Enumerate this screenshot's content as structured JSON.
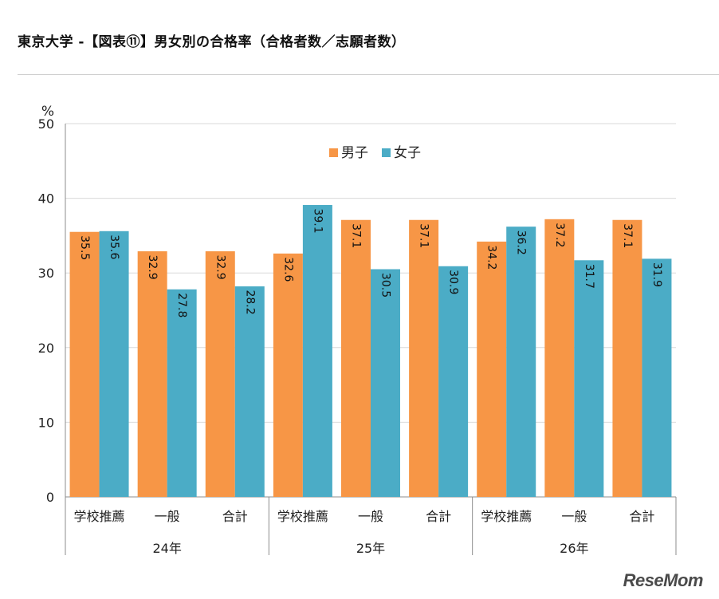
{
  "page": {
    "title": "東京大学 -【図表⑪】男女別の合格率（合格者数／志願者数）",
    "brand": "ReseMom"
  },
  "chart_data": {
    "type": "bar",
    "unit": "%",
    "ylim": [
      0,
      50
    ],
    "yticks": [
      0,
      10,
      20,
      30,
      40,
      50
    ],
    "grid": true,
    "legend_position": "top-center",
    "groups": [
      {
        "label": "24年",
        "categories": [
          "学校推薦",
          "一般",
          "合計"
        ]
      },
      {
        "label": "25年",
        "categories": [
          "学校推薦",
          "一般",
          "合計"
        ]
      },
      {
        "label": "26年",
        "categories": [
          "学校推薦",
          "一般",
          "合計"
        ]
      }
    ],
    "series": [
      {
        "name": "男子",
        "color": "#f79646",
        "values": [
          35.5,
          32.9,
          32.9,
          32.6,
          37.1,
          37.1,
          34.2,
          37.2,
          37.1
        ]
      },
      {
        "name": "女子",
        "color": "#4bacc6",
        "values": [
          35.6,
          27.8,
          28.2,
          39.1,
          30.5,
          30.9,
          36.2,
          31.7,
          31.9
        ]
      }
    ]
  }
}
